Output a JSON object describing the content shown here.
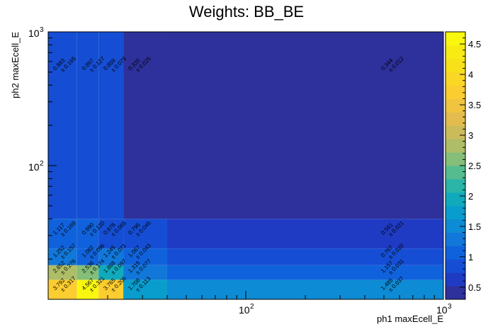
{
  "chart_data": {
    "type": "heatmap",
    "title": "Weights: BB_BE",
    "xlabel": "ph1 maxEcell_E",
    "ylabel": "ph2 maxEcell_E",
    "x_scale": "log",
    "y_scale": "log",
    "xlim": [
      10,
      1000
    ],
    "ylim": [
      10,
      1000
    ],
    "x_ticks": [
      {
        "base": "10",
        "exp": "2",
        "value": 100
      },
      {
        "base": "10",
        "exp": "3",
        "value": 1000
      }
    ],
    "y_ticks": [
      {
        "base": "10",
        "exp": "2",
        "value": 100
      },
      {
        "base": "10",
        "exp": "3",
        "value": 1000
      }
    ],
    "x_edges": [
      10,
      14,
      18,
      24,
      40,
      1000
    ],
    "y_edges": [
      10,
      14,
      18,
      24,
      40,
      1000
    ],
    "colorbar": {
      "min": 0.3,
      "max": 4.7,
      "ticks": [
        "0.5",
        "1",
        "1.5",
        "2",
        "2.5",
        "3",
        "3.5",
        "4",
        "4.5"
      ]
    },
    "cells": [
      {
        "ix": 0,
        "iy": 0,
        "value": 3.792,
        "label": "3.792",
        "err": "± 0.317"
      },
      {
        "ix": 1,
        "iy": 0,
        "value": 4.567,
        "label": "4.567",
        "err": "± 0.321"
      },
      {
        "ix": 2,
        "iy": 0,
        "value": 3.765,
        "label": "3.765",
        "err": "± 0.206"
      },
      {
        "ix": 3,
        "iy": 0,
        "value": 1.708,
        "label": "1.708",
        "err": "± 0.113"
      },
      {
        "ix": 4,
        "iy": 0,
        "value": 1.485,
        "label": "1.485",
        "err": "± 0.037"
      },
      {
        "ix": 0,
        "iy": 1,
        "value": 2.852,
        "label": "2.852",
        "err": "± 0.276"
      },
      {
        "ix": 1,
        "iy": 1,
        "value": 2.536,
        "label": "2.536",
        "err": "± 0.174"
      },
      {
        "ix": 2,
        "iy": 1,
        "value": 1.888,
        "label": "1.888",
        "err": "± 0.097"
      },
      {
        "ix": 3,
        "iy": 1,
        "value": 1.315,
        "label": "1.315",
        "err": "± 0.077"
      },
      {
        "ix": 4,
        "iy": 1,
        "value": 1.157,
        "label": "1.157",
        "err": "± 0.031"
      },
      {
        "ix": 0,
        "iy": 2,
        "value": 1.252,
        "label": "1.252",
        "err": "± 0.157"
      },
      {
        "ix": 1,
        "iy": 2,
        "value": 1.082,
        "label": "1.082",
        "err": "± 0.096"
      },
      {
        "ix": 2,
        "iy": 2,
        "value": 1.245,
        "label": "1.245",
        "err": "± 0.071"
      },
      {
        "ix": 3,
        "iy": 2,
        "value": 1.067,
        "label": "1.067",
        "err": "± 0.043"
      },
      {
        "ix": 4,
        "iy": 2,
        "value": 0.767,
        "label": "0.767",
        "err": "± 0.020"
      },
      {
        "ix": 0,
        "iy": 3,
        "value": 1.117,
        "label": "1.117",
        "err": "± 0.169"
      },
      {
        "ix": 1,
        "iy": 3,
        "value": 0.99,
        "label": "0.990",
        "err": "± 0.120"
      },
      {
        "ix": 2,
        "iy": 3,
        "value": 0.878,
        "label": "0.878",
        "err": "± 0.065"
      },
      {
        "ix": 3,
        "iy": 3,
        "value": 0.796,
        "label": "0.796",
        "err": "± 0.045"
      },
      {
        "ix": 4,
        "iy": 3,
        "value": 0.561,
        "label": "0.561",
        "err": "± 0.021"
      },
      {
        "ix": 0,
        "iy": 4,
        "value": 0.883,
        "label": "0.883",
        "err": "± 0.165"
      },
      {
        "ix": 1,
        "iy": 4,
        "value": 0.897,
        "label": "0.897",
        "err": "± 0.127"
      },
      {
        "ix": 2,
        "iy": 4,
        "value": 0.859,
        "label": "0.859",
        "err": "± 0.079"
      },
      {
        "ix": 3,
        "iy": 4,
        "value": 0.32,
        "label": "0.320",
        "err": "± 0.025"
      },
      {
        "ix": 4,
        "iy": 4,
        "value": 0.344,
        "label": "0.344",
        "err": "± 0.012"
      }
    ]
  }
}
